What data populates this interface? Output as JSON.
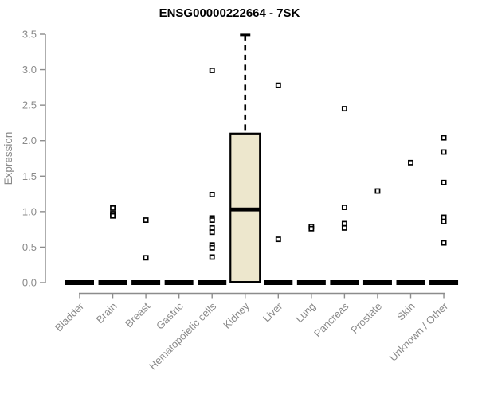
{
  "chart_data": {
    "type": "boxplot",
    "title": "ENSG00000222664 - 7SK",
    "ylabel": "Expression",
    "xlabel": "",
    "ylim": [
      0,
      3.5
    ],
    "yticks": [
      0.0,
      0.5,
      1.0,
      1.5,
      2.0,
      2.5,
      3.0,
      3.5
    ],
    "ytick_labels": [
      "0.0",
      "0.5",
      "1.0",
      "1.5",
      "2.0",
      "2.5",
      "3.0",
      "3.5"
    ],
    "grid": false,
    "legend_position": "none",
    "categories": [
      "Bladder",
      "Brain",
      "Breast",
      "Gastric",
      "Hematopoietic cells",
      "Kidney",
      "Liver",
      "Lung",
      "Pancreas",
      "Prostate",
      "Skin",
      "Unknown / Other"
    ],
    "boxes": [
      {
        "category": "Bladder",
        "q1": 0,
        "median": 0,
        "q3": 0,
        "whisker_low": 0,
        "whisker_high": 0,
        "outliers": []
      },
      {
        "category": "Brain",
        "q1": 0,
        "median": 0,
        "q3": 0,
        "whisker_low": 0,
        "whisker_high": 0,
        "outliers": [
          1.05,
          0.97,
          0.94
        ]
      },
      {
        "category": "Breast",
        "q1": 0,
        "median": 0,
        "q3": 0,
        "whisker_low": 0,
        "whisker_high": 0,
        "outliers": [
          0.88,
          0.35
        ]
      },
      {
        "category": "Gastric",
        "q1": 0,
        "median": 0,
        "q3": 0,
        "whisker_low": 0,
        "whisker_high": 0,
        "outliers": []
      },
      {
        "category": "Hematopoietic cells",
        "q1": 0,
        "median": 0,
        "q3": 0,
        "whisker_low": 0,
        "whisker_high": 0,
        "outliers": [
          2.99,
          1.24,
          0.91,
          0.88,
          0.77,
          0.71,
          0.53,
          0.49,
          0.36
        ]
      },
      {
        "category": "Kidney",
        "q1": 0.01,
        "median": 1.03,
        "q3": 2.1,
        "whisker_low": 0.01,
        "whisker_high": 3.49,
        "outliers": []
      },
      {
        "category": "Liver",
        "q1": 0,
        "median": 0,
        "q3": 0,
        "whisker_low": 0,
        "whisker_high": 0,
        "outliers": [
          2.78,
          0.61
        ]
      },
      {
        "category": "Lung",
        "q1": 0,
        "median": 0,
        "q3": 0,
        "whisker_low": 0,
        "whisker_high": 0,
        "outliers": [
          0.79,
          0.76
        ]
      },
      {
        "category": "Pancreas",
        "q1": 0,
        "median": 0,
        "q3": 0,
        "whisker_low": 0,
        "whisker_high": 0,
        "outliers": [
          2.45,
          1.06,
          0.83,
          0.77
        ]
      },
      {
        "category": "Prostate",
        "q1": 0,
        "median": 0,
        "q3": 0,
        "whisker_low": 0,
        "whisker_high": 0,
        "outliers": [
          1.29
        ]
      },
      {
        "category": "Skin",
        "q1": 0,
        "median": 0,
        "q3": 0,
        "whisker_low": 0,
        "whisker_high": 0,
        "outliers": [
          1.69
        ]
      },
      {
        "category": "Unknown / Other",
        "q1": 0,
        "median": 0,
        "q3": 0,
        "whisker_low": 0,
        "whisker_high": 0,
        "outliers": [
          2.04,
          1.84,
          1.41,
          0.92,
          0.86,
          0.56
        ]
      }
    ],
    "colors": {
      "background": "#FFFFFF",
      "box_fill": "#EDE7CD",
      "box_stroke": "#000000",
      "median": "#000000",
      "zero_bar": "#000000",
      "whisker": "#000000",
      "outlier_fill": "#FFFFFF",
      "outlier_stroke": "#000000",
      "axis": "#8C8C8C",
      "tick_labels": "#8A8A8A",
      "title": "#000000"
    }
  }
}
